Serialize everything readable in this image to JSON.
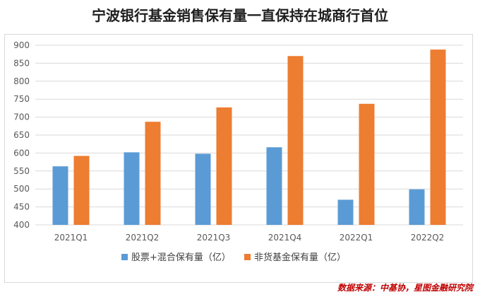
{
  "chart_data": {
    "type": "bar",
    "title": "宁波银行基金销售保有量一直保持在城商行首位",
    "categories": [
      "2021Q1",
      "2021Q2",
      "2021Q3",
      "2021Q4",
      "2022Q1",
      "2022Q2"
    ],
    "series": [
      {
        "name": "股票+混合保有量（亿）",
        "color": "#5b9bd5",
        "values": [
          563,
          602,
          598,
          616,
          470,
          499
        ]
      },
      {
        "name": "非货基金保有量（亿）",
        "color": "#ed7d31",
        "values": [
          592,
          687,
          727,
          870,
          737,
          888
        ]
      }
    ],
    "ylim": [
      400,
      900
    ],
    "yticks": [
      400,
      450,
      500,
      550,
      600,
      650,
      700,
      750,
      800,
      850,
      900
    ],
    "grid": true,
    "legend": "bottom",
    "xlabel": "",
    "ylabel": ""
  },
  "source": "数据来源：中基协，星图金融研究院"
}
